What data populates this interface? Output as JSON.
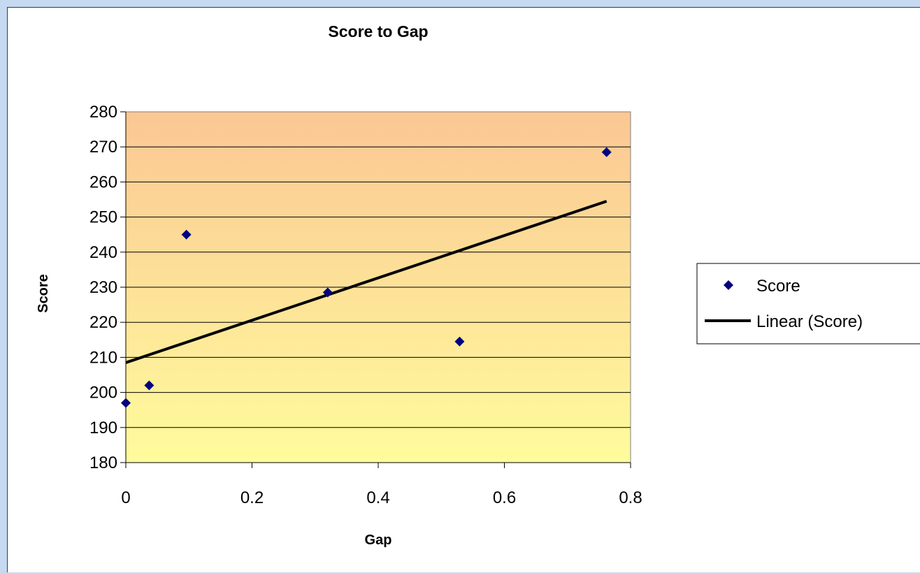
{
  "chart_data": {
    "type": "scatter",
    "title": "Score to Gap",
    "xlabel": "Gap",
    "ylabel": "Score",
    "xlim": [
      0,
      0.8
    ],
    "ylim": [
      180,
      280
    ],
    "x_ticks": [
      "0",
      "0.2",
      "0.4",
      "0.6",
      "0.8"
    ],
    "y_ticks": [
      "180",
      "190",
      "200",
      "210",
      "220",
      "230",
      "240",
      "250",
      "260",
      "270",
      "280"
    ],
    "grid": "horizontal",
    "legend_position": "right",
    "plot_background": "gradient orange to light yellow",
    "series": [
      {
        "name": "Score",
        "kind": "points",
        "marker": "diamond",
        "color": "#000080",
        "points": [
          {
            "x": 0.0,
            "y": 197
          },
          {
            "x": 0.037,
            "y": 202
          },
          {
            "x": 0.096,
            "y": 245
          },
          {
            "x": 0.32,
            "y": 228.5
          },
          {
            "x": 0.529,
            "y": 214.5
          },
          {
            "x": 0.762,
            "y": 268.5
          }
        ]
      },
      {
        "name": "Linear (Score)",
        "kind": "trendline",
        "color": "#000000",
        "points": [
          {
            "x": 0.0,
            "y": 208.5
          },
          {
            "x": 0.762,
            "y": 254.5
          }
        ]
      }
    ]
  }
}
